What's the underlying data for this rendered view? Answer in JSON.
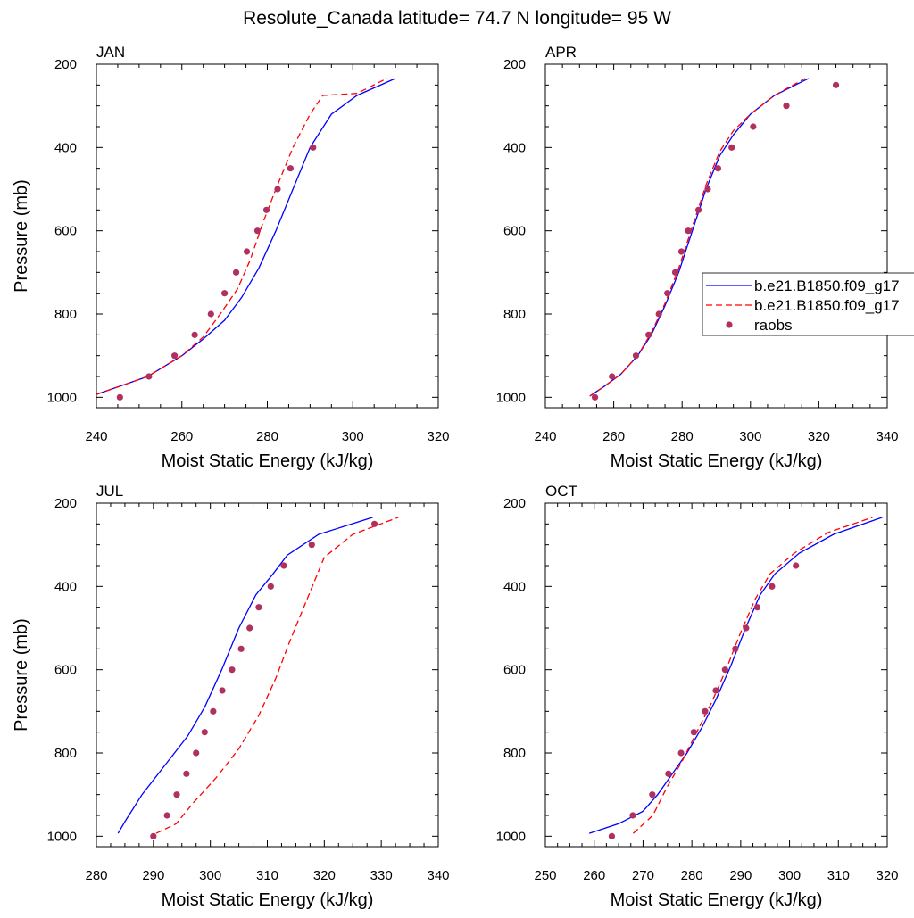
{
  "title": "Resolute_Canada  latitude= 74.7 N longitude= 95 W",
  "colors": {
    "model1": "#0000ff",
    "model2": "#ff0000",
    "obs": "#b03060",
    "axis": "#000000"
  },
  "legend": {
    "placement": "right side of APR panel",
    "entries": [
      {
        "label": "b.e21.B1850.f09_g17",
        "style": "solid"
      },
      {
        "label": "b.e21.B1850.f09_g17",
        "style": "dashed"
      },
      {
        "label": "raobs",
        "style": "marker"
      }
    ]
  },
  "chart_data": [
    {
      "type": "line",
      "panel": "JAN",
      "xlabel": "Moist Static Energy (kJ/kg)",
      "ylabel": "Pressure (mb)",
      "xlim": [
        240,
        320
      ],
      "ylim": [
        1025,
        200
      ],
      "y_reversed": true,
      "xticks": [
        240,
        260,
        280,
        300,
        320
      ],
      "yticks": [
        200,
        400,
        600,
        800,
        1000
      ],
      "series": [
        {
          "name": "b.e21.B1850.f09_g17",
          "style": "solid",
          "x": [
            240,
            252,
            260,
            265,
            270,
            274,
            278,
            282,
            286,
            290,
            295,
            301,
            310
          ],
          "y": [
            993,
            950,
            900,
            860,
            815,
            760,
            690,
            600,
            500,
            400,
            320,
            275,
            234
          ]
        },
        {
          "name": "b.e21.B1850.f09_g17",
          "style": "dashed",
          "x": [
            240,
            252,
            260,
            265,
            269,
            273,
            276,
            279,
            282,
            286,
            290,
            293,
            301,
            308
          ],
          "y": [
            993,
            950,
            900,
            855,
            800,
            740,
            670,
            580,
            500,
            400,
            320,
            275,
            270,
            234
          ]
        },
        {
          "name": "raobs",
          "style": "marker",
          "x": [
            245.5,
            252.3,
            258.3,
            263.0,
            266.8,
            270.0,
            272.7,
            275.2,
            277.7,
            279.8,
            282.4,
            285.4,
            290.7
          ],
          "y": [
            1000,
            950,
            900,
            850,
            800,
            750,
            700,
            650,
            600,
            550,
            500,
            450,
            400
          ]
        }
      ]
    },
    {
      "type": "line",
      "panel": "APR",
      "xlabel": "Moist Static Energy (kJ/kg)",
      "ylabel": "",
      "xlim": [
        240,
        340
      ],
      "ylim": [
        1025,
        200
      ],
      "y_reversed": true,
      "xticks": [
        240,
        260,
        280,
        300,
        320,
        340
      ],
      "yticks": [
        200,
        400,
        600,
        800,
        1000
      ],
      "series": [
        {
          "name": "b.e21.B1850.f09_g17",
          "style": "solid",
          "x": [
            253,
            257,
            262,
            267,
            271,
            275,
            279,
            283,
            287,
            291,
            295,
            300,
            307,
            317
          ],
          "y": [
            997,
            975,
            945,
            900,
            850,
            780,
            700,
            600,
            500,
            420,
            370,
            320,
            275,
            234
          ]
        },
        {
          "name": "b.e21.B1850.f09_g17",
          "style": "dashed",
          "x": [
            253,
            257,
            262,
            267,
            271,
            275,
            279,
            283,
            287,
            291,
            295,
            300,
            307,
            316
          ],
          "y": [
            997,
            975,
            945,
            900,
            845,
            775,
            690,
            590,
            490,
            410,
            360,
            320,
            275,
            234
          ]
        },
        {
          "name": "raobs",
          "style": "marker",
          "x": [
            254.5,
            259.5,
            266.5,
            270.2,
            273.2,
            275.7,
            278.0,
            279.8,
            281.8,
            284.8,
            287.5,
            290.5,
            294.5,
            300.8,
            310.5,
            325.0
          ],
          "y": [
            1000,
            950,
            900,
            850,
            800,
            750,
            700,
            650,
            600,
            550,
            500,
            450,
            400,
            350,
            300,
            250
          ]
        }
      ]
    },
    {
      "type": "line",
      "panel": "JUL",
      "xlabel": "Moist Static Energy (kJ/kg)",
      "ylabel": "Pressure (mb)",
      "xlim": [
        280,
        340
      ],
      "ylim": [
        1025,
        200
      ],
      "y_reversed": true,
      "xticks": [
        280,
        290,
        300,
        310,
        320,
        330,
        340
      ],
      "yticks": [
        200,
        400,
        600,
        800,
        1000
      ],
      "series": [
        {
          "name": "b.e21.B1850.f09_g17",
          "style": "solid",
          "x": [
            283.8,
            285,
            288,
            292,
            296,
            299,
            302,
            305,
            308,
            311,
            313.5,
            319,
            328.5
          ],
          "y": [
            993,
            965,
            900,
            830,
            760,
            690,
            600,
            500,
            420,
            370,
            325,
            275,
            234
          ]
        },
        {
          "name": "b.e21.B1850.f09_g17",
          "style": "dashed",
          "x": [
            290.5,
            294,
            297,
            301,
            305,
            308.5,
            311.5,
            314,
            317,
            320,
            325,
            333
          ],
          "y": [
            993,
            970,
            920,
            860,
            790,
            710,
            620,
            530,
            430,
            330,
            275,
            234
          ]
        },
        {
          "name": "raobs",
          "style": "marker",
          "x": [
            290.0,
            292.4,
            294.1,
            295.8,
            297.5,
            299.0,
            300.5,
            302.1,
            303.8,
            305.4,
            306.9,
            308.5,
            310.6,
            312.9,
            317.8,
            328.8
          ],
          "y": [
            1000,
            950,
            900,
            850,
            800,
            750,
            700,
            650,
            600,
            550,
            500,
            450,
            400,
            350,
            300,
            250
          ]
        }
      ]
    },
    {
      "type": "line",
      "panel": "OCT",
      "xlabel": "Moist Static Energy (kJ/kg)",
      "ylabel": "",
      "xlim": [
        250,
        320
      ],
      "ylim": [
        1025,
        200
      ],
      "y_reversed": true,
      "xticks": [
        250,
        260,
        270,
        280,
        290,
        300,
        310,
        320
      ],
      "yticks": [
        200,
        400,
        600,
        800,
        1000
      ],
      "series": [
        {
          "name": "b.e21.B1850.f09_g17",
          "style": "solid",
          "x": [
            259,
            265,
            270,
            273,
            276,
            279,
            282,
            285,
            288,
            291,
            294,
            297,
            302,
            309,
            319
          ],
          "y": [
            993,
            970,
            940,
            900,
            850,
            800,
            740,
            670,
            590,
            500,
            420,
            370,
            320,
            275,
            234
          ]
        },
        {
          "name": "b.e21.B1850.f09_g17",
          "style": "dashed",
          "x": [
            268,
            272,
            275,
            278,
            281,
            284,
            287,
            290,
            293,
            296,
            301,
            308,
            317
          ],
          "y": [
            993,
            950,
            880,
            820,
            750,
            680,
            600,
            510,
            430,
            370,
            320,
            270,
            234
          ]
        },
        {
          "name": "raobs",
          "style": "marker",
          "x": [
            263.6,
            267.9,
            271.9,
            275.2,
            277.8,
            280.4,
            282.7,
            284.9,
            286.8,
            288.9,
            291.1,
            293.4,
            296.4,
            301.3
          ],
          "y": [
            1000,
            950,
            900,
            850,
            800,
            750,
            700,
            650,
            600,
            550,
            500,
            450,
            400,
            350
          ]
        }
      ]
    }
  ]
}
